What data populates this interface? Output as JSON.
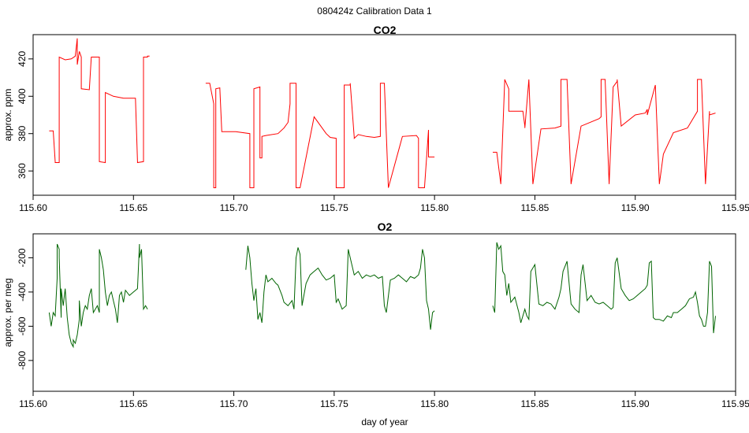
{
  "figure": {
    "title": "080424z   Calibration Data 1"
  },
  "colors": {
    "co2": "#ff0000",
    "o2": "#006400",
    "axis": "#000000"
  },
  "chart_data": [
    {
      "type": "line",
      "title": "CO2",
      "xlabel": "",
      "ylabel": "approx. ppm",
      "xlim": [
        115.6,
        115.95
      ],
      "ylim": [
        347,
        433
      ],
      "x_ticks": [
        115.6,
        115.65,
        115.7,
        115.75,
        115.8,
        115.85,
        115.9,
        115.95
      ],
      "x_tick_labels": [
        "115.60",
        "115.65",
        "115.70",
        "115.75",
        "115.80",
        "115.85",
        "115.90",
        "115.95"
      ],
      "y_ticks": [
        360,
        380,
        400,
        420
      ],
      "y_tick_labels": [
        "360",
        "380",
        "400",
        "420"
      ],
      "series": [
        {
          "x": [
            115.608,
            115.61,
            115.61,
            115.611,
            115.611,
            115.613,
            115.613,
            115.616,
            115.619,
            115.621,
            115.622,
            115.622,
            115.623,
            115.624,
            115.624,
            115.628,
            115.628,
            115.629,
            115.63,
            115.633,
            115.633,
            115.636,
            115.636,
            115.64,
            115.645,
            115.651,
            115.652,
            115.652,
            115.655,
            115.655,
            115.657,
            115.657,
            115.658
          ],
          "y": [
            381.5,
            381.5,
            381.5,
            365,
            364.5,
            364.5,
            421,
            419.5,
            420,
            421.5,
            431,
            417,
            424,
            421,
            404,
            403.5,
            403.5,
            421,
            421,
            421,
            365,
            364.5,
            402,
            400,
            399,
            399,
            365,
            364.5,
            365,
            421,
            421,
            421.5,
            421.5
          ]
        },
        {
          "x": [
            115.686,
            115.688,
            115.688,
            115.69,
            115.69,
            115.691,
            115.691,
            115.693,
            115.693,
            115.694,
            115.694,
            115.701,
            115.708,
            115.708,
            115.71,
            115.71,
            115.713,
            115.713,
            115.714,
            115.714,
            115.716,
            115.716,
            115.722,
            115.725,
            115.727,
            115.728,
            115.728,
            115.73,
            115.731,
            115.731,
            115.733,
            115.74,
            115.746,
            115.748,
            115.751,
            115.751,
            115.755,
            115.755,
            115.758,
            115.758,
            115.76,
            115.76,
            115.762,
            115.766,
            115.77,
            115.773,
            115.773,
            115.775,
            115.775,
            115.777,
            115.777,
            115.784,
            115.791,
            115.792,
            115.792,
            115.795,
            115.795,
            115.797,
            115.797,
            115.8
          ],
          "y": [
            407,
            407,
            407,
            396,
            351,
            351,
            404,
            404.5,
            404.5,
            381,
            381,
            381,
            380,
            351,
            351,
            404,
            405,
            367,
            367,
            378.5,
            379,
            379,
            380,
            383,
            386,
            396,
            407,
            407,
            407,
            351,
            351,
            389,
            380,
            378,
            377.5,
            351,
            351,
            406,
            406,
            407,
            378,
            377.5,
            379.5,
            378.5,
            378,
            378.5,
            407,
            407,
            407,
            351,
            351,
            378.5,
            379,
            377.5,
            351,
            351,
            351,
            382,
            367.5,
            367.5
          ]
        },
        {
          "x": [
            115.829,
            115.831,
            115.831,
            115.833,
            115.833,
            115.835,
            115.835,
            115.837,
            115.837,
            115.841,
            115.844,
            115.845,
            115.845,
            115.847,
            115.847,
            115.849,
            115.849,
            115.853,
            115.86,
            115.863,
            115.863,
            115.866,
            115.866,
            115.868,
            115.868,
            115.873,
            115.882,
            115.883,
            115.883,
            115.885,
            115.885,
            115.887,
            115.887,
            115.889,
            115.889,
            115.891,
            115.891,
            115.893,
            115.893,
            115.9,
            115.905,
            115.906,
            115.906,
            115.91,
            115.91,
            115.912,
            115.912,
            115.914,
            115.914,
            115.919,
            115.926,
            115.931,
            115.931,
            115.933,
            115.933,
            115.935,
            115.935,
            115.937,
            115.937,
            115.94
          ],
          "y": [
            370,
            370,
            370,
            353,
            353,
            409,
            409,
            404,
            392,
            392,
            392,
            384,
            383,
            409,
            409,
            353,
            353,
            382.5,
            383,
            384,
            409,
            409,
            409,
            353,
            353,
            384,
            388,
            389,
            409,
            409,
            409,
            353,
            353,
            405,
            405,
            408,
            409,
            384,
            384,
            390,
            391,
            393,
            390,
            406,
            406,
            353,
            353,
            369,
            369,
            380.5,
            383,
            392,
            409,
            409,
            409,
            353,
            353,
            392,
            390,
            391
          ]
        }
      ]
    },
    {
      "type": "line",
      "title": "O2",
      "xlabel": "day of year",
      "ylabel": "approx. per meg",
      "xlim": [
        115.6,
        115.95
      ],
      "ylim": [
        -980,
        -60
      ],
      "x_ticks": [
        115.6,
        115.65,
        115.7,
        115.75,
        115.8,
        115.85,
        115.9,
        115.95
      ],
      "x_tick_labels": [
        "115.60",
        "115.65",
        "115.70",
        "115.75",
        "115.80",
        "115.85",
        "115.90",
        "115.95"
      ],
      "y_ticks": [
        -800,
        -600,
        -400,
        -200
      ],
      "y_tick_labels": [
        "-800",
        "-600",
        "-400",
        "-200"
      ],
      "series": [
        {
          "x": [
            115.608,
            115.609,
            115.61,
            115.611,
            115.612,
            115.612,
            115.613,
            115.613,
            115.614,
            115.614,
            115.615,
            115.616,
            115.617,
            115.618,
            115.619,
            115.62,
            115.62,
            115.621,
            115.622,
            115.623,
            115.623,
            115.624,
            115.625,
            115.626,
            115.627,
            115.628,
            115.629,
            115.63,
            115.632,
            115.633,
            115.633,
            115.634,
            115.635,
            115.636,
            115.637,
            115.638,
            115.639,
            115.64,
            115.641,
            115.642,
            115.643,
            115.644,
            115.645,
            115.646,
            115.648,
            115.65,
            115.652,
            115.653,
            115.653,
            115.654,
            115.655,
            115.656,
            115.657
          ],
          "y": [
            -520,
            -600,
            -520,
            -540,
            -320,
            -120,
            -150,
            -200,
            -550,
            -380,
            -480,
            -380,
            -550,
            -650,
            -700,
            -720,
            -680,
            -700,
            -650,
            -560,
            -450,
            -600,
            -520,
            -480,
            -500,
            -420,
            -380,
            -520,
            -480,
            -520,
            -150,
            -200,
            -270,
            -400,
            -480,
            -420,
            -400,
            -450,
            -500,
            -580,
            -420,
            -400,
            -460,
            -390,
            -420,
            -400,
            -380,
            -120,
            -200,
            -150,
            -500,
            -480,
            -500
          ]
        },
        {
          "x": [
            115.706,
            115.707,
            115.708,
            115.709,
            115.71,
            115.711,
            115.712,
            115.713,
            115.714,
            115.715,
            115.716,
            115.717,
            115.719,
            115.721,
            115.722,
            115.724,
            115.725,
            115.727,
            115.729,
            115.73,
            115.731,
            115.732,
            115.733,
            115.734,
            115.736,
            115.738,
            115.74,
            115.742,
            115.744,
            115.746,
            115.748,
            115.75,
            115.751,
            115.752,
            115.754,
            115.756,
            115.757,
            115.758,
            115.76,
            115.762,
            115.764,
            115.766,
            115.768,
            115.77,
            115.772,
            115.774,
            115.775,
            115.776,
            115.778,
            115.78,
            115.782,
            115.784,
            115.786,
            115.788,
            115.79,
            115.792,
            115.793,
            115.794,
            115.795,
            115.796,
            115.797,
            115.798,
            115.799,
            115.8
          ],
          "y": [
            -270,
            -130,
            -200,
            -350,
            -450,
            -380,
            -560,
            -520,
            -580,
            -400,
            -300,
            -340,
            -320,
            -350,
            -360,
            -420,
            -460,
            -480,
            -450,
            -500,
            -200,
            -140,
            -180,
            -480,
            -350,
            -300,
            -280,
            -260,
            -300,
            -330,
            -320,
            -300,
            -460,
            -440,
            -500,
            -480,
            -150,
            -200,
            -300,
            -280,
            -320,
            -300,
            -310,
            -300,
            -320,
            -310,
            -480,
            -520,
            -330,
            -320,
            -300,
            -320,
            -340,
            -310,
            -320,
            -300,
            -260,
            -150,
            -200,
            -450,
            -500,
            -620,
            -520,
            -510
          ]
        },
        {
          "x": [
            115.829,
            115.83,
            115.831,
            115.832,
            115.833,
            115.834,
            115.835,
            115.836,
            115.837,
            115.838,
            115.84,
            115.842,
            115.843,
            115.845,
            115.846,
            115.847,
            115.848,
            115.85,
            115.852,
            115.854,
            115.856,
            115.858,
            115.86,
            115.862,
            115.863,
            115.864,
            115.866,
            115.868,
            115.87,
            115.872,
            115.873,
            115.874,
            115.876,
            115.878,
            115.88,
            115.882,
            115.884,
            115.886,
            115.888,
            115.889,
            115.89,
            115.891,
            115.893,
            115.895,
            115.897,
            115.899,
            115.901,
            115.903,
            115.905,
            115.906,
            115.907,
            115.908,
            115.909,
            115.91,
            115.912,
            115.914,
            115.916,
            115.918,
            115.919,
            115.921,
            115.923,
            115.925,
            115.927,
            115.929,
            115.93,
            115.931,
            115.932,
            115.933,
            115.934,
            115.935,
            115.936,
            115.937,
            115.938,
            115.939,
            115.94
          ],
          "y": [
            -480,
            -520,
            -110,
            -150,
            -130,
            -280,
            -300,
            -420,
            -350,
            -460,
            -430,
            -520,
            -580,
            -500,
            -540,
            -560,
            -280,
            -240,
            -470,
            -480,
            -460,
            -470,
            -500,
            -430,
            -380,
            -280,
            -220,
            -470,
            -500,
            -520,
            -300,
            -240,
            -450,
            -420,
            -460,
            -470,
            -460,
            -480,
            -500,
            -490,
            -230,
            -200,
            -380,
            -420,
            -450,
            -440,
            -420,
            -400,
            -380,
            -360,
            -230,
            -220,
            -550,
            -560,
            -560,
            -570,
            -540,
            -550,
            -520,
            -520,
            -500,
            -480,
            -440,
            -430,
            -400,
            -460,
            -540,
            -560,
            -600,
            -600,
            -520,
            -220,
            -250,
            -640,
            -540
          ]
        }
      ]
    }
  ]
}
